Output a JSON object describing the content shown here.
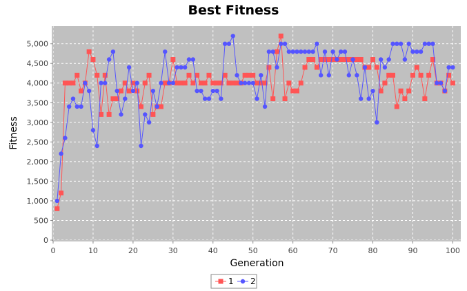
{
  "chart_data": {
    "type": "line",
    "title": "Best Fitness",
    "xlabel": "Generation",
    "ylabel": "Fitness",
    "xlim": [
      0,
      102
    ],
    "ylim": [
      0,
      5450
    ],
    "xticks": [
      0,
      10,
      20,
      30,
      40,
      50,
      60,
      70,
      80,
      90,
      100
    ],
    "yticks": [
      0,
      500,
      1000,
      1500,
      2000,
      2500,
      3000,
      3500,
      4000,
      4500,
      5000
    ],
    "ytick_labels": [
      "0",
      "500",
      "1,000",
      "1,500",
      "2,000",
      "2,500",
      "3,000",
      "3,500",
      "4,000",
      "4,500",
      "5,000"
    ],
    "grid": true,
    "legend_position": "bottom",
    "plot_background": "#c0c0c0",
    "x": [
      1,
      2,
      3,
      4,
      5,
      6,
      7,
      8,
      9,
      10,
      11,
      12,
      13,
      14,
      15,
      16,
      17,
      18,
      19,
      20,
      21,
      22,
      23,
      24,
      25,
      26,
      27,
      28,
      29,
      30,
      31,
      32,
      33,
      34,
      35,
      36,
      37,
      38,
      39,
      40,
      41,
      42,
      43,
      44,
      45,
      46,
      47,
      48,
      49,
      50,
      51,
      52,
      53,
      54,
      55,
      56,
      57,
      58,
      59,
      60,
      61,
      62,
      63,
      64,
      65,
      66,
      67,
      68,
      69,
      70,
      71,
      72,
      73,
      74,
      75,
      76,
      77,
      78,
      79,
      80,
      81,
      82,
      83,
      84,
      85,
      86,
      87,
      88,
      89,
      90,
      91,
      92,
      93,
      94,
      95,
      96,
      97,
      98,
      99,
      100
    ],
    "series": [
      {
        "name": "1",
        "color": "#ff5555",
        "marker": "square",
        "values": [
          800,
          1200,
          4000,
          4000,
          4000,
          4200,
          3800,
          4000,
          4800,
          4600,
          4200,
          3200,
          4200,
          3200,
          3600,
          3600,
          3800,
          4000,
          3800,
          4000,
          3800,
          3400,
          4000,
          4200,
          3200,
          3400,
          3400,
          4000,
          4000,
          4600,
          4000,
          4000,
          4000,
          4200,
          4000,
          4200,
          4000,
          4000,
          4200,
          4000,
          4000,
          4000,
          4200,
          4000,
          4000,
          4000,
          4000,
          4200,
          4200,
          4200,
          4000,
          4000,
          4000,
          4400,
          3600,
          4800,
          5200,
          3600,
          4000,
          3800,
          3800,
          4000,
          4400,
          4600,
          4600,
          4400,
          4600,
          4600,
          4600,
          4600,
          4600,
          4600,
          4600,
          4600,
          4600,
          4600,
          4600,
          4400,
          4400,
          4600,
          4400,
          3800,
          4000,
          4200,
          4200,
          3400,
          3800,
          3600,
          3800,
          4200,
          4400,
          4200,
          3600,
          4200,
          4600,
          4000,
          4000,
          3800,
          4200,
          4000
        ]
      },
      {
        "name": "2",
        "color": "#5555ff",
        "marker": "circle",
        "values": [
          1000,
          2200,
          2600,
          3400,
          3600,
          3400,
          3400,
          4000,
          3800,
          2800,
          2400,
          4000,
          4000,
          4600,
          4800,
          3800,
          3200,
          3600,
          4400,
          3800,
          4000,
          2400,
          3200,
          3000,
          3800,
          3400,
          4000,
          4800,
          4000,
          4000,
          4400,
          4400,
          4400,
          4600,
          4600,
          3800,
          3800,
          3600,
          3600,
          3800,
          3800,
          3600,
          5000,
          5000,
          5200,
          4200,
          4000,
          4000,
          4000,
          4000,
          3600,
          4200,
          3400,
          4800,
          4800,
          4400,
          5000,
          5000,
          4800,
          4800,
          4800,
          4800,
          4800,
          4800,
          4800,
          5000,
          4200,
          4800,
          4200,
          4800,
          4600,
          4800,
          4800,
          4200,
          4600,
          4200,
          3600,
          4400,
          3600,
          3800,
          3000,
          4600,
          4400,
          4600,
          5000,
          5000,
          5000,
          4600,
          5000,
          4800,
          4800,
          4800,
          5000,
          5000,
          5000,
          4000,
          4000,
          3800,
          4400,
          4400
        ]
      }
    ]
  }
}
